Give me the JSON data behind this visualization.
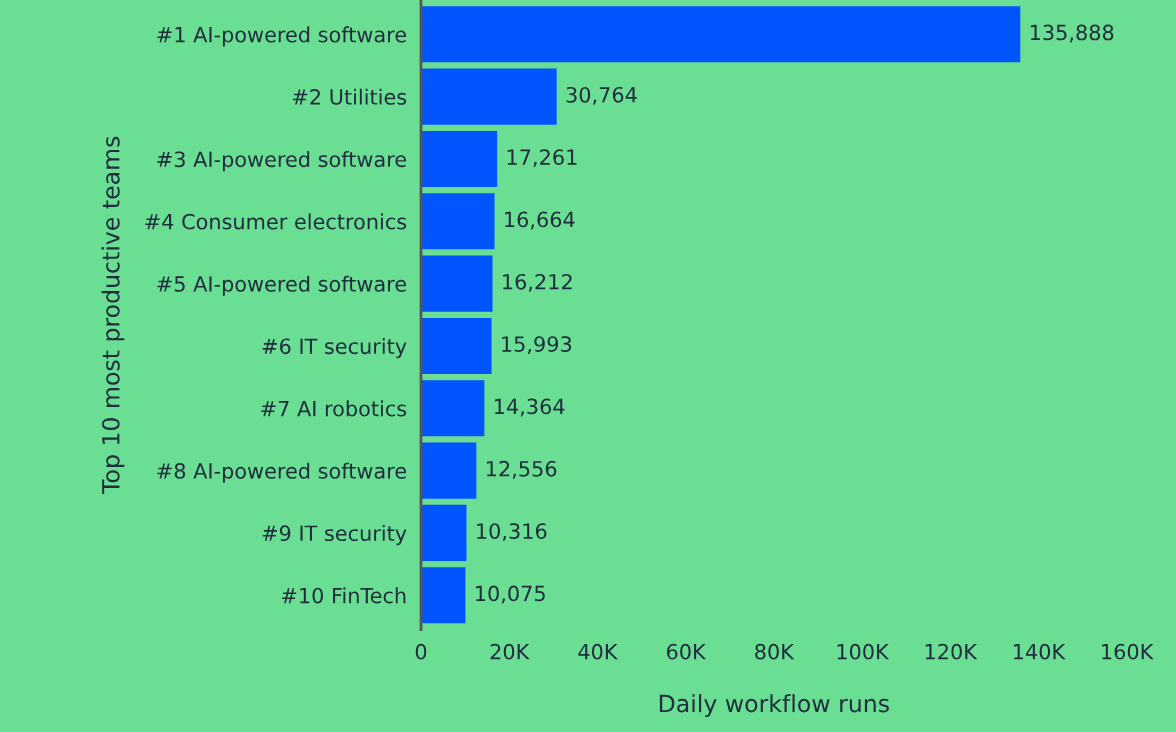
{
  "chart_data": {
    "type": "bar",
    "orientation": "horizontal",
    "categories": [
      "#1 AI-powered software",
      "#2 Utilities",
      "#3 AI-powered software",
      "#4 Consumer electronics",
      "#5 AI-powered software",
      "#6 IT security",
      "#7 AI robotics",
      "#8 AI-powered software",
      "#9 IT security",
      "#10 FinTech"
    ],
    "values": [
      135888,
      30764,
      17261,
      16664,
      16212,
      15993,
      14364,
      12556,
      10316,
      10075
    ],
    "value_labels": [
      "135,888",
      "30,764",
      "17,261",
      "16,664",
      "16,212",
      "15,993",
      "14,364",
      "12,556",
      "10,316",
      "10,075"
    ],
    "color": "#0055ff",
    "xlabel": "Daily workflow runs",
    "ylabel": "Top 10 most productive teams",
    "xlim": [
      0,
      160000
    ],
    "xticks": [
      0,
      {
        "value": 20000,
        "label": "20K"
      },
      {
        "value": 40000,
        "label": "40K"
      },
      {
        "value": 60000,
        "label": "60K"
      },
      {
        "value": 80000,
        "label": "80K"
      },
      {
        "value": 100000,
        "label": "100K"
      },
      {
        "value": 120000,
        "label": "120K"
      },
      {
        "value": 140000,
        "label": "140K"
      },
      {
        "value": 160000,
        "label": "160K"
      }
    ],
    "grid": false,
    "legend": false
  }
}
